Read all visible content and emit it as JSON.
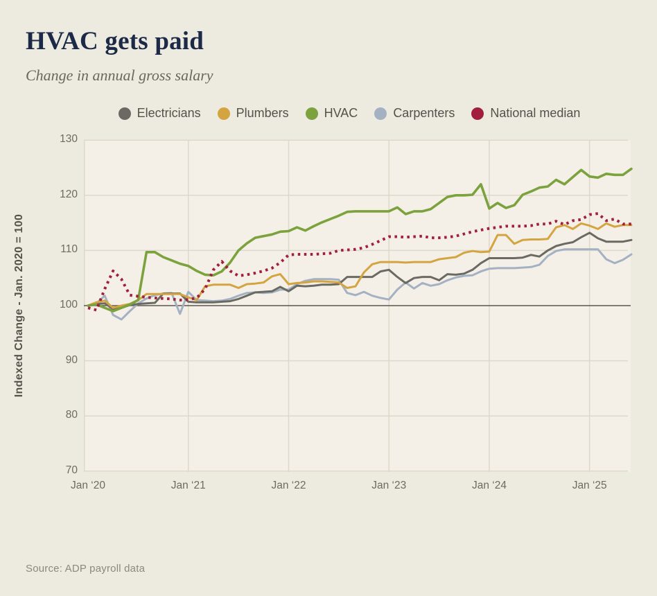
{
  "header": {
    "title": "HVAC gets paid",
    "subtitle": "Change in annual gross salary"
  },
  "source": "Source: ADP payroll data",
  "colors": {
    "page_bg": "#edeae0",
    "plot_bg": "#f4f0e7",
    "grid": "#ddd8ca",
    "baseline_line": "#5a564e",
    "title": "#1c2a47",
    "tick_text": "#6f6a61"
  },
  "chart_data": {
    "type": "line",
    "title": "HVAC gets paid",
    "subtitle": "Change in annual gross salary",
    "ylabel": "Indexed Change - Jan. 2020 = 100",
    "xlabel": "",
    "ylim": [
      70,
      130
    ],
    "y_ticks": [
      70,
      80,
      90,
      100,
      110,
      120,
      130
    ],
    "x_ticks": [
      "Jan ‘20",
      "Jan ‘21",
      "Jan ‘22",
      "Jan ‘23",
      "Jan ‘24",
      "Jan ‘25"
    ],
    "x_interval": "monthly",
    "x_start": "Jan 2020",
    "x_end": "Jun 2025",
    "baseline": 100,
    "grid": true,
    "legend_position": "top",
    "series": [
      {
        "name": "Electricians",
        "color": "#6b6a62",
        "width": 3,
        "z": 2,
        "dash": "",
        "values": [
          100.0,
          100.3,
          100.4,
          99.4,
          99.6,
          100.1,
          100.3,
          100.4,
          100.5,
          102.2,
          102.2,
          102.2,
          100.7,
          100.6,
          100.6,
          100.6,
          100.7,
          100.8,
          101.2,
          101.8,
          102.4,
          102.5,
          102.6,
          103.4,
          102.6,
          103.6,
          103.5,
          103.6,
          103.8,
          103.8,
          103.9,
          105.2,
          105.2,
          105.2,
          105.2,
          106.2,
          106.5,
          105.2,
          104.1,
          105.0,
          105.2,
          105.2,
          104.6,
          105.7,
          105.6,
          105.8,
          106.5,
          107.7,
          108.6,
          108.6,
          108.6,
          108.6,
          108.7,
          109.2,
          108.9,
          110.0,
          110.8,
          111.2,
          111.5,
          112.4,
          113.2,
          112.2,
          111.6,
          111.6,
          111.6,
          111.9
        ]
      },
      {
        "name": "Plumbers",
        "color": "#d4a440",
        "width": 3,
        "z": 3,
        "dash": "",
        "values": [
          100.0,
          100.6,
          100.9,
          99.6,
          100.0,
          100.3,
          101.0,
          102.1,
          102.1,
          102.1,
          102.1,
          102.1,
          101.5,
          101.0,
          103.5,
          103.8,
          103.8,
          103.8,
          103.2,
          103.9,
          104.0,
          104.2,
          105.3,
          105.7,
          103.9,
          104.1,
          104.2,
          104.4,
          104.4,
          104.3,
          104.2,
          103.2,
          103.5,
          106.0,
          107.5,
          107.9,
          107.9,
          107.9,
          107.8,
          107.9,
          107.9,
          107.9,
          108.4,
          108.6,
          108.8,
          109.6,
          109.9,
          109.7,
          109.8,
          112.8,
          112.8,
          111.2,
          111.9,
          112.0,
          112.0,
          112.1,
          114.2,
          114.6,
          113.9,
          114.9,
          114.5,
          113.9,
          114.9,
          114.3,
          114.6,
          114.6
        ]
      },
      {
        "name": "HVAC",
        "color": "#7ca23e",
        "width": 3.6,
        "z": 4,
        "dash": "",
        "values": [
          100.0,
          100.2,
          99.6,
          99.0,
          99.6,
          100.2,
          101.0,
          109.7,
          109.7,
          108.8,
          108.2,
          107.6,
          107.2,
          106.3,
          105.6,
          105.5,
          106.2,
          107.8,
          110.0,
          111.3,
          112.3,
          112.6,
          112.9,
          113.4,
          113.5,
          114.2,
          113.6,
          114.4,
          115.1,
          115.7,
          116.3,
          117.0,
          117.1,
          117.1,
          117.1,
          117.1,
          117.1,
          117.8,
          116.6,
          117.1,
          117.1,
          117.5,
          118.6,
          119.7,
          120.0,
          120.0,
          120.1,
          122.0,
          117.6,
          118.6,
          117.7,
          118.2,
          120.1,
          120.7,
          121.4,
          121.6,
          122.8,
          122.0,
          123.3,
          124.6,
          123.4,
          123.2,
          123.9,
          123.7,
          123.7,
          124.8
        ]
      },
      {
        "name": "Carpenters",
        "color": "#a3b1c2",
        "width": 3,
        "z": 1,
        "dash": "",
        "values": [
          100.0,
          100.4,
          101.8,
          98.3,
          97.5,
          99.0,
          100.4,
          101.3,
          101.9,
          102.2,
          102.3,
          98.5,
          102.5,
          101.0,
          100.9,
          100.8,
          100.9,
          101.2,
          101.8,
          102.3,
          102.4,
          102.3,
          102.4,
          102.9,
          102.9,
          103.9,
          104.5,
          104.8,
          104.8,
          104.8,
          104.7,
          102.3,
          101.9,
          102.5,
          101.8,
          101.4,
          101.1,
          102.9,
          104.2,
          103.1,
          104.1,
          103.6,
          103.9,
          104.6,
          105.1,
          105.4,
          105.5,
          106.2,
          106.7,
          106.8,
          106.8,
          106.8,
          106.9,
          107.0,
          107.4,
          109.0,
          109.9,
          110.2,
          110.2,
          110.2,
          110.2,
          110.2,
          108.4,
          107.7,
          108.3,
          109.3
        ]
      },
      {
        "name": "National median",
        "color": "#a11f3d",
        "width": 4,
        "z": 5,
        "dash": "3.5 5.5",
        "values": [
          99.6,
          99.2,
          103.0,
          106.3,
          104.8,
          101.9,
          101.7,
          101.5,
          101.4,
          101.3,
          101.2,
          101.0,
          101.1,
          101.4,
          103.0,
          106.5,
          108.0,
          106.3,
          105.4,
          105.6,
          105.9,
          106.3,
          106.8,
          107.8,
          109.2,
          109.3,
          109.3,
          109.3,
          109.4,
          109.5,
          110.0,
          110.1,
          110.2,
          110.5,
          111.1,
          111.8,
          112.5,
          112.5,
          112.4,
          112.5,
          112.6,
          112.3,
          112.3,
          112.4,
          112.6,
          113.0,
          113.4,
          113.7,
          114.0,
          114.2,
          114.4,
          114.4,
          114.4,
          114.5,
          114.8,
          114.8,
          115.3,
          114.7,
          115.4,
          115.6,
          116.5,
          116.7,
          115.4,
          115.7,
          114.8,
          114.8
        ]
      }
    ]
  }
}
